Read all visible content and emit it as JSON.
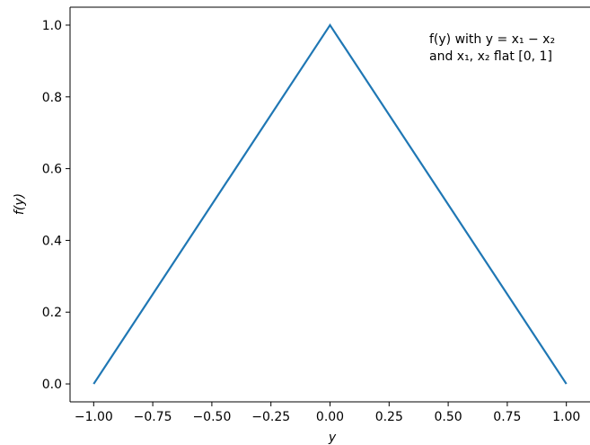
{
  "chart_data": {
    "type": "line",
    "x": [
      -1.0,
      0.0,
      1.0
    ],
    "series": [
      {
        "values": [
          0.0,
          1.0,
          0.0
        ],
        "color": "#1f77b4"
      }
    ],
    "xlabel": "y",
    "ylabel": "f(y)",
    "xlim": [
      -1.1,
      1.1
    ],
    "ylim": [
      -0.05,
      1.05
    ],
    "xticks": [
      -1.0,
      -0.75,
      -0.5,
      -0.25,
      0.0,
      0.25,
      0.5,
      0.75,
      1.0
    ],
    "xtick_labels": [
      "−1.00",
      "−0.75",
      "−0.50",
      "−0.25",
      "0.00",
      "0.25",
      "0.50",
      "0.75",
      "1.00"
    ],
    "yticks": [
      0.0,
      0.2,
      0.4,
      0.6,
      0.8,
      1.0
    ],
    "ytick_labels": [
      "0.0",
      "0.2",
      "0.4",
      "0.6",
      "0.8",
      "1.0"
    ],
    "annotation": {
      "line1": "f(y) with y = x₁ − x₂",
      "line2": "and x₁, x₂ flat [0, 1]",
      "placement": "top-right"
    },
    "grid": false
  }
}
